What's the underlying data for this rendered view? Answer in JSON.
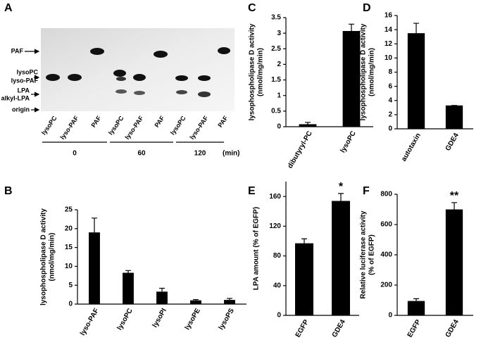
{
  "tlc_panel": {
    "label": "A",
    "bands": [
      "PAF",
      "lysoPC",
      "lyso-PAF",
      "LPA",
      "alkyl-LPA",
      "origin"
    ],
    "lanes": [
      "lysoPC",
      "lyso-PAF",
      "PAF",
      "lysoPC",
      "lyso-PAF",
      "PAF",
      "lysoPC",
      "lyso-PAF",
      "PAF"
    ],
    "times": [
      0,
      60,
      120
    ],
    "time_unit": "(min)"
  },
  "chart_data": [
    {
      "type": "bar",
      "label": "B",
      "ylabel": [
        "lysophospholipase D activity",
        "(nmol/mg/min)"
      ],
      "categories": [
        "lyso-PAF",
        "lysoPC",
        "lysoPI",
        "lysoPE",
        "lysoPS"
      ],
      "values": [
        19,
        8.3,
        3.3,
        1.0,
        1.1
      ],
      "errors": [
        3.8,
        0.6,
        0.9,
        0.2,
        0.4
      ],
      "color": "#000000",
      "ylim": [
        0,
        25
      ],
      "yticks": [
        0,
        5,
        10,
        15,
        20,
        25
      ]
    },
    {
      "type": "bar",
      "label": "C",
      "ylabel": [
        "lysophospholipase D activity",
        "(nmol/mg/min)"
      ],
      "categories": [
        "dibutyryl-PC",
        "lysoPC"
      ],
      "values": [
        0.08,
        3.07
      ],
      "errors": [
        0.06,
        0.22
      ],
      "color": "#000000",
      "ylim": [
        0,
        3.5
      ],
      "yticks": [
        0,
        0.5,
        1,
        1.5,
        2,
        2.5,
        3,
        3.5
      ]
    },
    {
      "type": "bar",
      "label": "D",
      "ylabel": [
        "lysophospholipase D activity",
        "(nmol/mg/min)"
      ],
      "categories": [
        "autotaxin",
        "GDE4"
      ],
      "values": [
        13.5,
        3.3
      ],
      "errors": [
        1.4,
        0
      ],
      "color": "#000000",
      "ylim": [
        0,
        16
      ],
      "yticks": [
        0,
        2,
        4,
        6,
        8,
        10,
        12,
        14,
        16
      ]
    },
    {
      "type": "bar",
      "label": "E",
      "ylabel": [
        "LPA amount (% of EGFP)"
      ],
      "categories": [
        "EGFP",
        "GDE4"
      ],
      "values": [
        97,
        154
      ],
      "errors": [
        6,
        10
      ],
      "color": "#000000",
      "ylim": [
        0,
        180
      ],
      "yticks": [
        0,
        40,
        80,
        120,
        160
      ],
      "annotations": [
        {
          "text": "*",
          "x": "GDE4"
        }
      ]
    },
    {
      "type": "bar",
      "label": "F",
      "ylabel": [
        "Relative luciferase activity",
        "(% of EGFP)"
      ],
      "categories": [
        "EGFP",
        "GDE4"
      ],
      "values": [
        95,
        700
      ],
      "errors": [
        15,
        45
      ],
      "color": "#000000",
      "ylim": [
        0,
        800
      ],
      "yticks": [
        0,
        200,
        400,
        600,
        800
      ],
      "annotations": [
        {
          "text": "**",
          "x": "GDE4"
        }
      ]
    }
  ]
}
